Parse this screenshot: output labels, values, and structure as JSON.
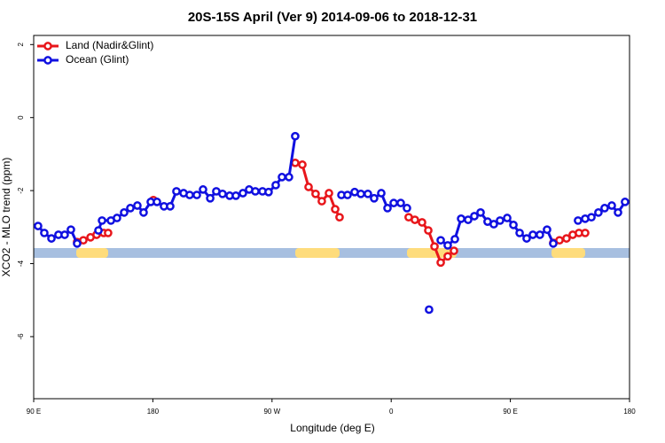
{
  "chart_data": {
    "type": "line",
    "title": "20S-15S April (Ver 9)   2014-09-06 to 2018-12-31",
    "x_label": "Longitude (deg E)",
    "y_label": "XCO2 - MLO trend (ppm)",
    "xlim": [
      90,
      540
    ],
    "ylim": [
      -7.7,
      2.25
    ],
    "xticks": [
      {
        "value": 90,
        "label": "90 E"
      },
      180,
      {
        "value": 270,
        "label": "90 W"
      },
      {
        "value": 360,
        "label": "0"
      },
      {
        "value": 450,
        "label": "90 E"
      },
      {
        "value": 540,
        "label": "180"
      }
    ],
    "yticks": [
      -6,
      -4,
      -2,
      0,
      2
    ],
    "legend": "top-left",
    "series": [
      {
        "name": "Land (Nadir&Glint)",
        "color": "#e8161b",
        "x": [
          122.8,
          127.5,
          132.9,
          137.5,
          142.9,
          146.2,
          null,
          180.4,
          null,
          287.5,
          292.9,
          297.6,
          302.9,
          307.6,
          313,
          317.7,
          321,
          null,
          373.2,
          377.9,
          383.3,
          388,
          392.7,
          397.4,
          402.7,
          407.4,
          null,
          482.4,
          487.1,
          492.4,
          497.1,
          501.8,
          506.5
        ],
        "values": [
          -3.41,
          -3.36,
          -3.28,
          -3.21,
          -3.16,
          -3.16,
          null,
          -2.26,
          null,
          -1.24,
          -1.29,
          -1.9,
          -2.09,
          -2.29,
          -2.07,
          -2.51,
          -2.73,
          null,
          -2.73,
          -2.8,
          -2.87,
          -3.09,
          -3.53,
          -3.97,
          -3.8,
          -3.65,
          null,
          -3.43,
          -3.36,
          -3.31,
          -3.21,
          -3.16,
          -3.16
        ]
      },
      {
        "name": "Ocean (Glint)",
        "color": "#1010e0",
        "x": [
          93.3,
          98,
          103.4,
          108.7,
          113.4,
          118.1,
          122.8,
          null,
          138.9,
          141.6,
          148.3,
          152.9,
          158.3,
          163,
          168.3,
          173,
          178.4,
          183.1,
          188.4,
          193.1,
          197.8,
          203.2,
          207.8,
          213.2,
          217.9,
          223.3,
          227.9,
          232.6,
          238,
          242.7,
          248,
          252.7,
          257.4,
          262.8,
          267.4,
          272.8,
          277.5,
          282.8,
          287.5,
          null,
          322.4,
          327,
          332.4,
          337.1,
          342.4,
          347.1,
          352.5,
          357.2,
          361.9,
          367.2,
          371.9,
          null,
          388.6,
          null,
          397.4,
          402.7,
          408.1,
          412.8,
          418.1,
          422.8,
          427.5,
          432.8,
          437.5,
          442.2,
          447.6,
          452.3,
          457,
          462.3,
          467,
          472.3,
          477.7,
          482.4,
          null,
          501.1,
          506.5,
          511.2,
          516.5,
          521.2,
          526.6,
          531.3,
          536.6
        ],
        "values": [
          -2.97,
          -3.16,
          -3.31,
          -3.21,
          -3.21,
          -3.07,
          -3.45,
          null,
          -3.09,
          -2.82,
          -2.82,
          -2.75,
          -2.6,
          -2.48,
          -2.41,
          -2.6,
          -2.31,
          -2.31,
          -2.43,
          -2.43,
          -2.02,
          -2.07,
          -2.12,
          -2.12,
          -1.97,
          -2.21,
          -2.02,
          -2.09,
          -2.14,
          -2.14,
          -2.07,
          -1.97,
          -2.02,
          -2.02,
          -2.04,
          -1.85,
          -1.63,
          -1.63,
          -0.51,
          null,
          -2.12,
          -2.12,
          -2.04,
          -2.09,
          -2.09,
          -2.21,
          -2.07,
          -2.48,
          -2.34,
          -2.34,
          -2.48,
          null,
          -5.26,
          null,
          -3.36,
          -3.5,
          -3.33,
          -2.77,
          -2.8,
          -2.7,
          -2.6,
          -2.85,
          -2.92,
          -2.82,
          -2.75,
          -2.94,
          -3.16,
          -3.31,
          -3.21,
          -3.21,
          -3.07,
          -3.45,
          null,
          -2.82,
          -2.77,
          -2.73,
          -2.6,
          -2.48,
          -2.41,
          -2.6,
          -2.31
        ]
      }
    ]
  }
}
